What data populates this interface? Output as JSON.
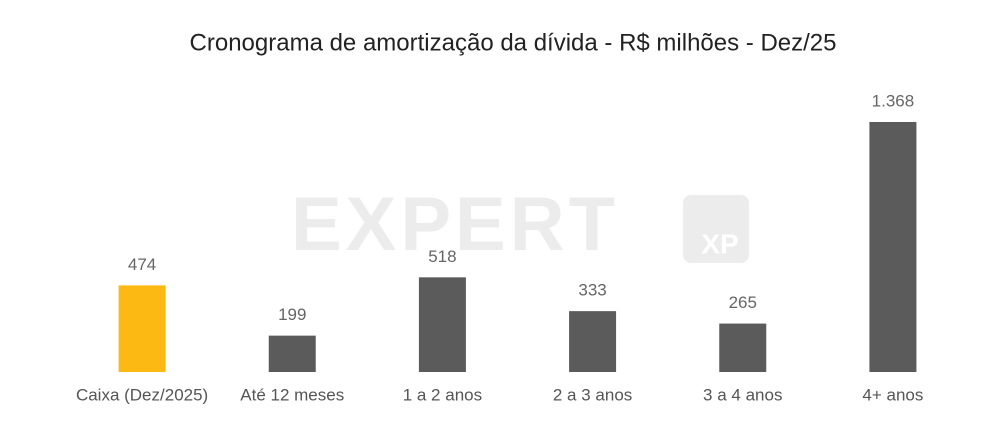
{
  "chart_data": {
    "type": "bar",
    "title": "Cronograma de amortização da dívida - R$ milhões - Dez/25",
    "categories": [
      "Caixa (Dez/2025)",
      "Até 12 meses",
      "1 a 2 anos",
      "2 a 3 anos",
      "3 a 4 anos",
      "4+ anos"
    ],
    "values": [
      474,
      199,
      518,
      333,
      265,
      1368
    ],
    "value_labels": [
      "474",
      "199",
      "518",
      "333",
      "265",
      "1.368"
    ],
    "colors": [
      "#fdb913",
      "#5b5b5b",
      "#5b5b5b",
      "#5b5b5b",
      "#5b5b5b",
      "#5b5b5b"
    ],
    "watermark": [
      "EXPERT",
      "XP"
    ]
  }
}
